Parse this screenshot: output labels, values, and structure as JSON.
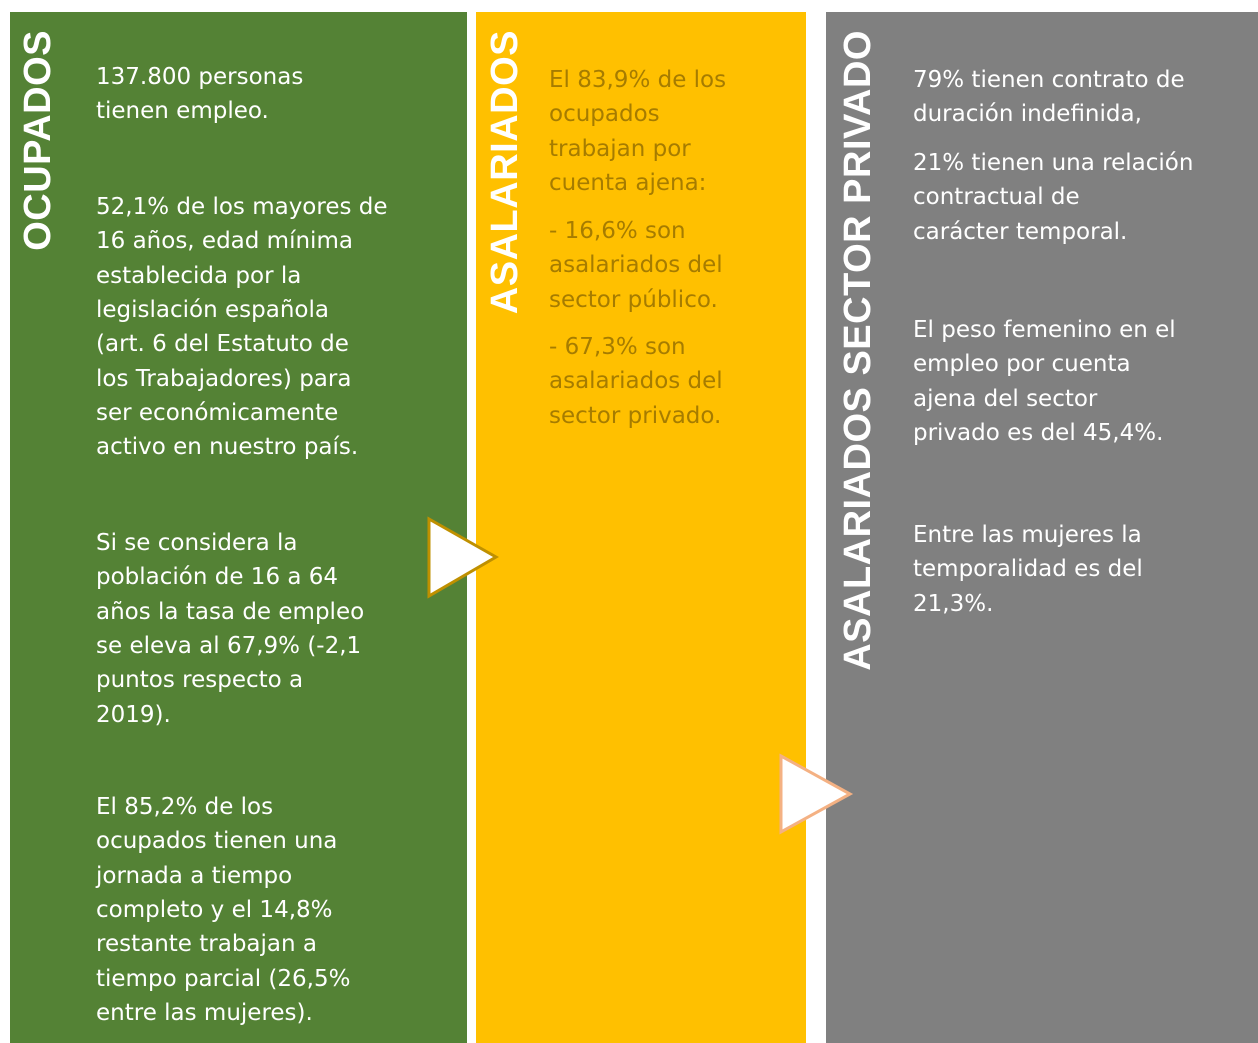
{
  "panels": [
    {
      "title": "OCUPADOS",
      "paragraphs": [
        [
          "137.800 personas",
          "tienen empleo."
        ],
        [
          "52,1% de los mayores de",
          "16 años, edad mínima",
          "establecida por la",
          "legislación española",
          "(art. 6 del Estatuto de",
          "los Trabajadores) para",
          "ser económicamente",
          "activo en nuestro país."
        ],
        [
          "Si se considera la",
          "población de 16 a 64",
          "años la tasa de empleo",
          "se eleva al 67,9% (-2,1",
          "puntos respecto a",
          "2019)."
        ],
        [
          "El 85,2% de los",
          "ocupados tienen una",
          "jornada a tiempo",
          "completo y el 14,8%",
          "restante trabajan a",
          "tiempo parcial (26,5%",
          "entre las mujeres)."
        ]
      ]
    },
    {
      "title": "ASALARIADOS",
      "paragraphs": [
        [
          "El 83,9% de los",
          "ocupados",
          "trabajan por",
          "cuenta ajena:"
        ],
        [
          "- 16,6% son",
          "asalariados del",
          "sector público."
        ],
        [
          "- 67,3% son",
          "asalariados del",
          "sector privado."
        ]
      ]
    },
    {
      "title": "ASALARIADOS SECTOR PRIVADO",
      "paragraphs": [
        [
          "79% tienen contrato de",
          "duración indefinida,"
        ],
        [
          "21% tienen una relación",
          "contractual de",
          "carácter temporal."
        ],
        [
          "El peso femenino en el",
          "empleo por cuenta",
          "ajena del sector",
          "privado es del 45,4%."
        ],
        [
          "Entre las mujeres la",
          "temporalidad es del",
          "21,3%."
        ]
      ]
    }
  ]
}
